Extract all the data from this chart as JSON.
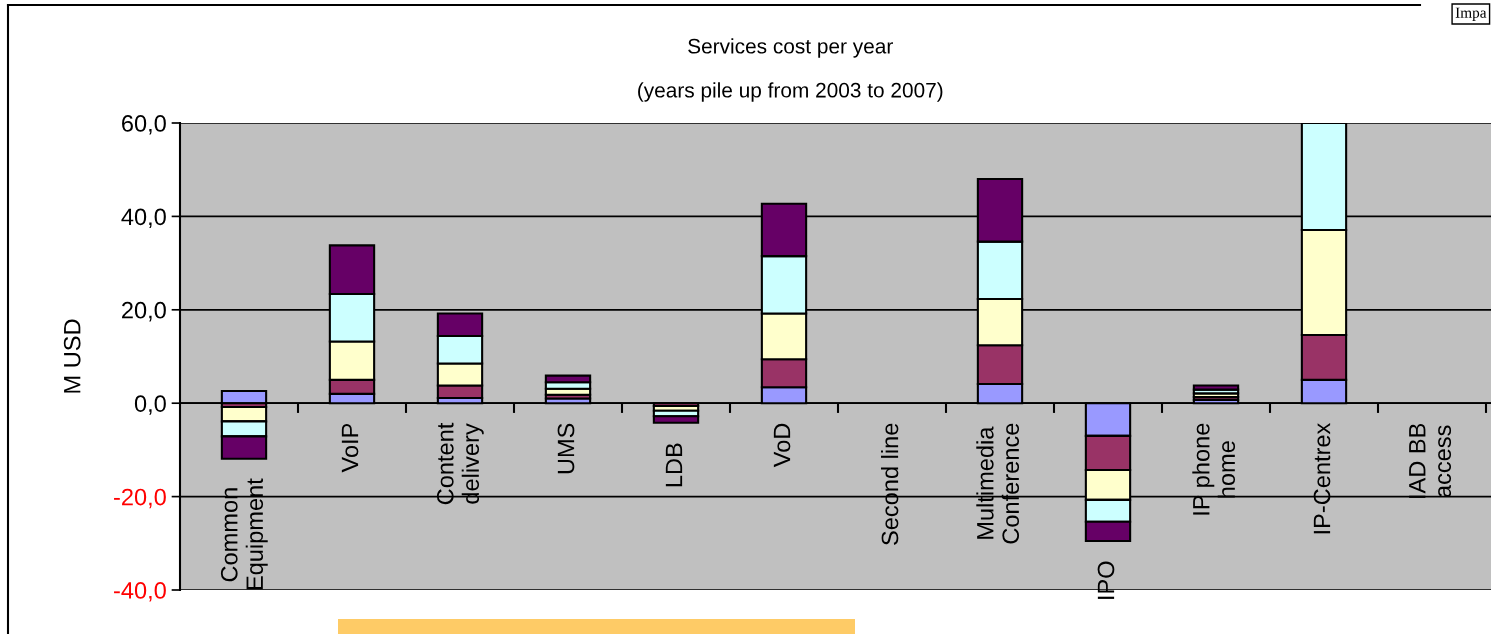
{
  "chart_data": {
    "type": "bar",
    "stacked": true,
    "title": "Services cost per year",
    "subtitle": "(years pile up from 2003 to 2007)",
    "ylabel": "M USD",
    "categories": [
      "Common\nEquipment",
      "VoIP",
      "Content\ndelivery",
      "UMS",
      "LDB",
      "VoD",
      "Second line",
      "Multimedia\nConference",
      "IPO",
      "IP phone\nhome",
      "IP-Centrex",
      "IAD BB\naccess"
    ],
    "series": [
      {
        "color": "#9999ff",
        "values": [
          2.6,
          2.0,
          1.1,
          1.0,
          null,
          3.4,
          null,
          4.1,
          -7.0,
          0.7,
          5.0,
          null
        ]
      },
      {
        "color": "#993366",
        "values": [
          -0.8,
          3.0,
          2.7,
          0.8,
          -0.6,
          6.0,
          null,
          8.3,
          -7.3,
          0.6,
          9.6,
          null
        ]
      },
      {
        "color": "#ffffcc",
        "values": [
          -3.1,
          8.2,
          4.7,
          1.3,
          -1.0,
          9.8,
          null,
          9.9,
          -6.4,
          0.8,
          22.5,
          null
        ]
      },
      {
        "color": "#ccffff",
        "values": [
          -3.2,
          10.2,
          5.9,
          1.4,
          -1.2,
          12.3,
          null,
          12.3,
          -4.7,
          0.8,
          22.9,
          null
        ]
      },
      {
        "color": "#660066",
        "values": [
          -4.8,
          10.4,
          4.8,
          1.4,
          -1.4,
          11.2,
          null,
          13.4,
          -4.1,
          0.9,
          null,
          null
        ]
      }
    ],
    "ylim": [
      -40,
      60
    ],
    "yticks": [
      {
        "value": -40,
        "label": "-40,0"
      },
      {
        "value": -20,
        "label": "-20,0"
      },
      {
        "value": 0,
        "label": "0,0"
      },
      {
        "value": 20,
        "label": "20,0"
      },
      {
        "value": 40,
        "label": "40,0"
      },
      {
        "value": 60,
        "label": "60,0"
      }
    ],
    "grid": "y",
    "legend": false,
    "annotations": [
      "Impa"
    ]
  }
}
